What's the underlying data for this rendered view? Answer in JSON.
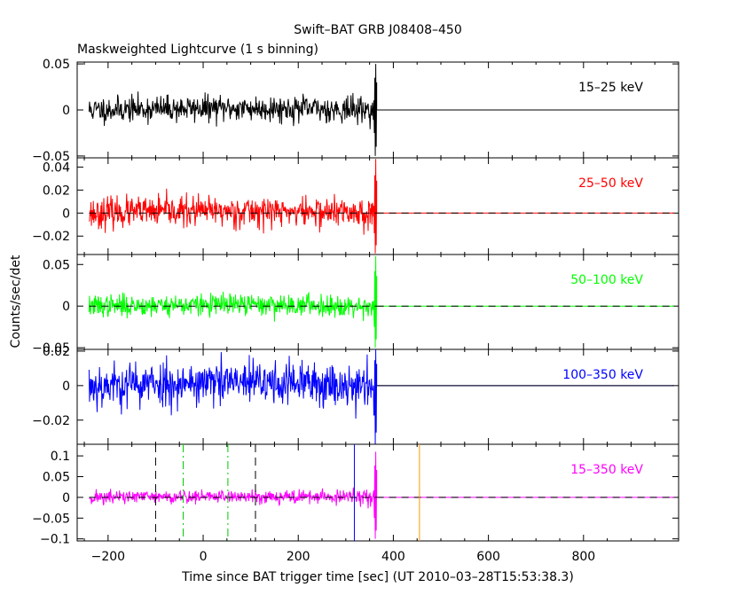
{
  "chart_data": {
    "type": "line",
    "title": "Swift–BAT GRB J08408–450",
    "subtitle": "Maskweighted Lightcurve (1 s binning)",
    "xlabel": "Time since BAT trigger time [sec] (UT 2010–03–28T15:53:38.3)",
    "ylabel": "Counts/sec/det",
    "xlim": [
      -265,
      1000
    ],
    "x_ticks": [
      -200,
      0,
      200,
      400,
      600,
      800
    ],
    "x_tick_labels": [
      "−200",
      "0",
      "200",
      "400",
      "600",
      "800"
    ],
    "data_range": [
      -240,
      365
    ],
    "flat_from": 365,
    "panels": [
      {
        "name": "15–25 keV",
        "color": "#000000",
        "ylim": [
          -0.052,
          0.052
        ],
        "y_ticks": [
          -0.05,
          0,
          0.05
        ],
        "y_tick_labels": [
          "−0.05",
          "0",
          "0.05"
        ],
        "noise_sigma": 0.007,
        "noise_seed": 11,
        "spike": [
          0.05,
          -0.05
        ],
        "zero_line_style": "solid",
        "vlines": []
      },
      {
        "name": "25–50 keV",
        "color": "#ff0000",
        "ylim": [
          -0.036,
          0.048
        ],
        "y_ticks": [
          -0.02,
          0,
          0.02,
          0.04
        ],
        "y_tick_labels": [
          "−0.02",
          "0",
          "0.02",
          "0.04"
        ],
        "noise_sigma": 0.0065,
        "noise_seed": 23,
        "spike": [
          0.047,
          -0.035
        ],
        "zero_line_style": "dashed",
        "vlines": []
      },
      {
        "name": "50–100 keV",
        "color": "#00ff00",
        "ylim": [
          -0.052,
          0.062
        ],
        "y_ticks": [
          -0.05,
          0,
          0.05
        ],
        "y_tick_labels": [
          "−0.05",
          "0",
          "0.05"
        ],
        "noise_sigma": 0.0065,
        "noise_seed": 37,
        "spike": [
          0.06,
          -0.05
        ],
        "zero_line_style": "dashed",
        "vlines": []
      },
      {
        "name": "100–350 keV",
        "color": "#0000ff",
        "ylim": [
          -0.034,
          0.021
        ],
        "y_ticks": [
          -0.02,
          0,
          0.02
        ],
        "y_tick_labels": [
          "−0.02",
          "0",
          "0.02"
        ],
        "noise_sigma": 0.0065,
        "noise_seed": 53,
        "spike": [
          0.021,
          -0.034
        ],
        "zero_line_style": "solid",
        "vlines": []
      },
      {
        "name": "15–350 keV",
        "color": "#ff00ff",
        "ylim": [
          -0.105,
          0.128
        ],
        "y_ticks": [
          -0.1,
          -0.05,
          0,
          0.05,
          0.1
        ],
        "y_tick_labels": [
          "−0.1",
          "−0.05",
          "0",
          "0.05",
          "0.1"
        ],
        "noise_sigma": 0.0085,
        "noise_seed": 71,
        "spike": [
          0.11,
          -0.1
        ],
        "zero_line_style": "dashed",
        "vlines": [
          {
            "x": -100,
            "color": "#000000",
            "style": "dashed"
          },
          {
            "x": -42,
            "color": "#00cc00",
            "style": "dashdot"
          },
          {
            "x": 52,
            "color": "#00cc00",
            "style": "dashdot"
          },
          {
            "x": 110,
            "color": "#000000",
            "style": "dashed"
          },
          {
            "x": 318,
            "color": "#0000ff",
            "style": "solid"
          },
          {
            "x": 455,
            "color": "#ff9900",
            "style": "solid"
          }
        ]
      }
    ]
  }
}
